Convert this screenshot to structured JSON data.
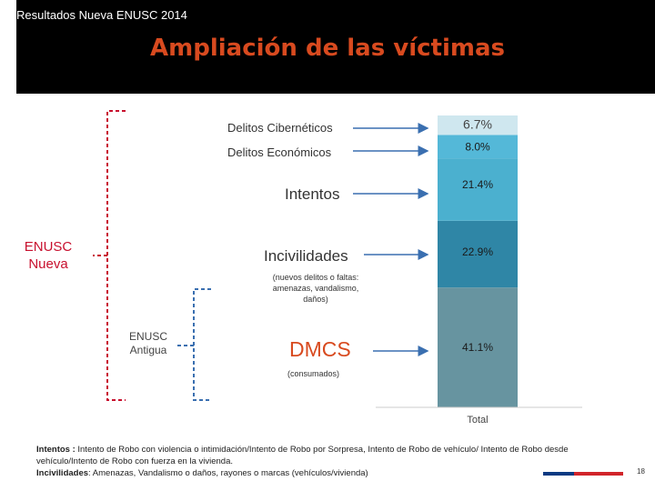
{
  "header": {
    "top_label": "Resultados Nueva ENUSC 2014",
    "title": "Ampliación de las víctimas"
  },
  "labels": {
    "ciberneticos": "Delitos Cibernéticos",
    "economicos": "Delitos Económicos",
    "intentos": "Intentos",
    "incivilidades": "Incivilidades",
    "incivilidades_note": "(nuevos delitos o faltas: amenazas, vandalismo, daños)",
    "dmcs": "DMCS",
    "dmcs_note": "(consumados)",
    "enusc_nueva": "ENUSC Nueva",
    "enusc_antigua": "ENUSC Antigua"
  },
  "footnote": {
    "intentos_term": "Intentos :",
    "intentos_text": " Intento de Robo con violencia o intimidación/Intento de Robo por Sorpresa, Intento de Robo de vehículo/ Intento de Robo desde vehículo/Intento de Robo con fuerza en la vivienda.",
    "incivilidades_term": "Incivilidades",
    "incivilidades_text": ": Amenazas, Vandalismo o daños, rayones o marcas (vehículos/vivienda)"
  },
  "page_number": "18",
  "colors": {
    "title": "#d84a1f",
    "header_bg": "#000000",
    "enusc_nueva_bracket": "#c8102e",
    "enusc_antigua_bracket": "#3a6fb0",
    "arrow": "#3a6fb0"
  },
  "chart_data": {
    "type": "bar",
    "stacked": true,
    "categories": [
      "Total"
    ],
    "series": [
      {
        "name": "DMCS",
        "values": [
          41.1
        ],
        "label": "41.1%",
        "color": "#6794a0"
      },
      {
        "name": "Incivilidades",
        "values": [
          22.9
        ],
        "label": "22.9%",
        "color": "#2f86a6"
      },
      {
        "name": "Intentos",
        "values": [
          21.4
        ],
        "label": "21.4%",
        "color": "#4bb0cf"
      },
      {
        "name": "Delitos Económicos",
        "values": [
          8.0
        ],
        "label": "8.0%",
        "color": "#54b8d8"
      },
      {
        "name": "Delitos Cibernéticos",
        "values": [
          6.7
        ],
        "label": "6.7%",
        "color": "#cfe7ef"
      }
    ],
    "xlabel": "",
    "ylabel": "",
    "ylim": [
      0,
      100
    ]
  }
}
